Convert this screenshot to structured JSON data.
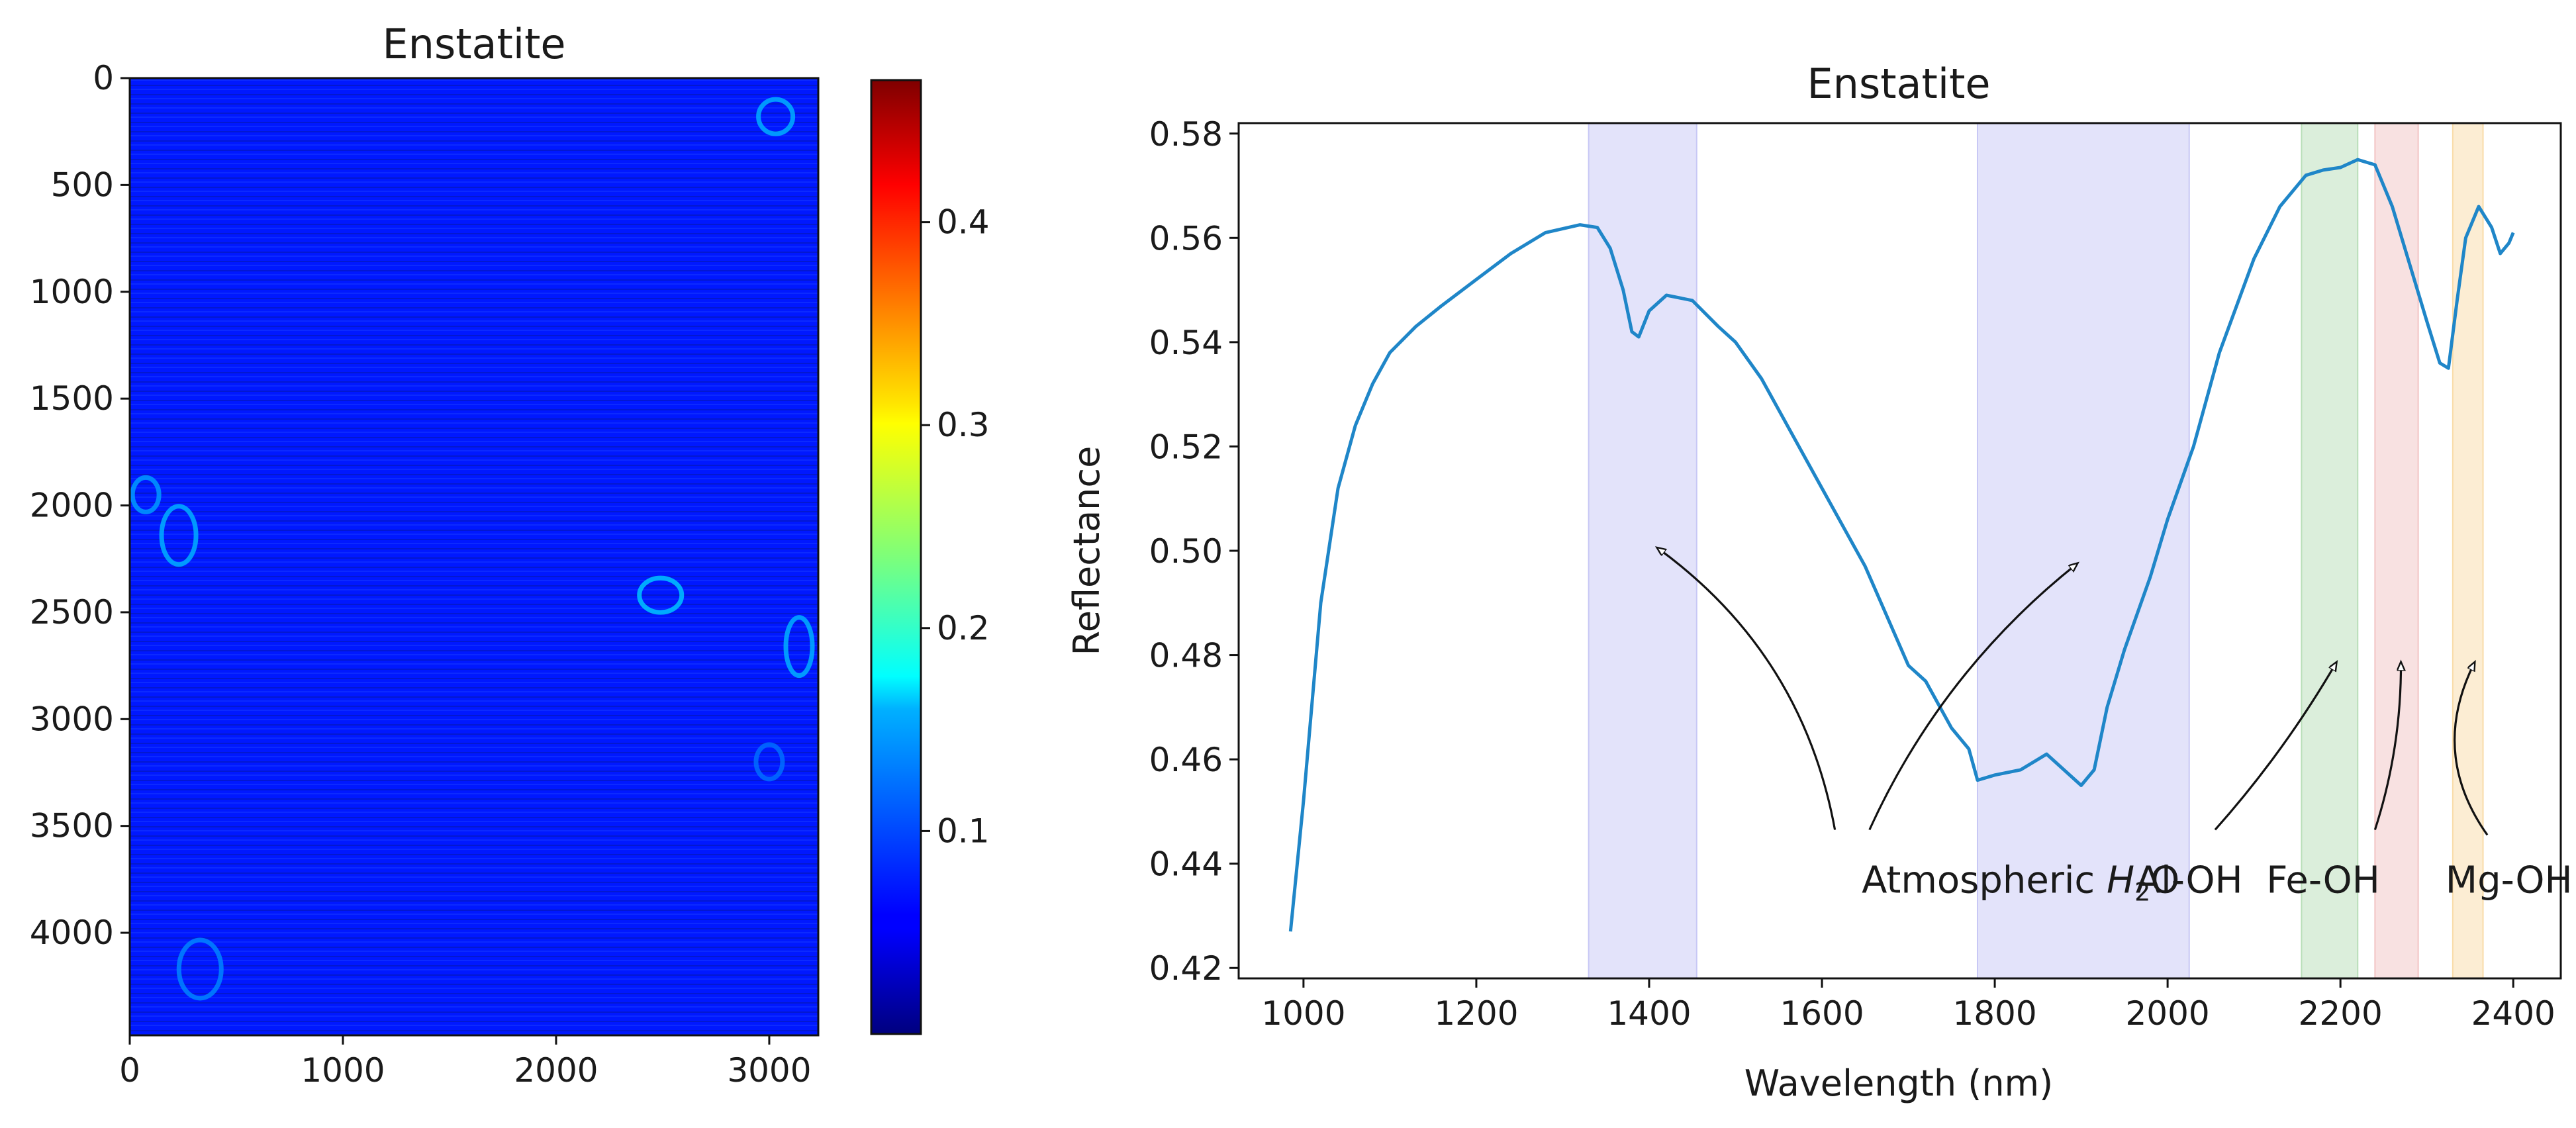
{
  "chart_data": [
    {
      "type": "heatmap",
      "title": "Enstatite",
      "xlim": [
        0,
        3230
      ],
      "ylim": [
        4480,
        0
      ],
      "x_ticks": [
        "0",
        "1000",
        "2000",
        "3000"
      ],
      "y_ticks": [
        "0",
        "500",
        "1000",
        "1500",
        "2000",
        "2500",
        "3000",
        "3500",
        "4000"
      ],
      "colormap": "jet",
      "colorbar": {
        "range": [
          0.0,
          0.47
        ],
        "ticks": [
          "0.1",
          "0.2",
          "0.3",
          "0.4"
        ]
      },
      "background_value": 0.07,
      "features": [
        {
          "x": 75,
          "y": 1950,
          "value": 0.13
        },
        {
          "x": 230,
          "y": 2140,
          "value": 0.14
        },
        {
          "x": 2490,
          "y": 2420,
          "value": 0.15
        },
        {
          "x": 3140,
          "y": 2660,
          "value": 0.14
        },
        {
          "x": 3030,
          "y": 180,
          "value": 0.14
        },
        {
          "x": 330,
          "y": 4170,
          "value": 0.12
        },
        {
          "x": 3000,
          "y": 3200,
          "value": 0.11
        }
      ]
    },
    {
      "type": "line",
      "title": "Enstatite",
      "xlabel": "Wavelength (nm)",
      "ylabel": "Reflectance",
      "xlim": [
        925,
        2455
      ],
      "ylim": [
        0.418,
        0.582
      ],
      "x_ticks": [
        "1000",
        "1200",
        "1400",
        "1600",
        "1800",
        "2000",
        "2200",
        "2400"
      ],
      "y_ticks": [
        "0.42",
        "0.44",
        "0.46",
        "0.48",
        "0.50",
        "0.52",
        "0.54",
        "0.56",
        "0.58"
      ],
      "line_color": "#1f86c8",
      "series": [
        {
          "name": "Enstatite",
          "x": [
            985,
            1000,
            1020,
            1040,
            1060,
            1080,
            1100,
            1130,
            1160,
            1200,
            1240,
            1280,
            1320,
            1340,
            1355,
            1370,
            1380,
            1388,
            1400,
            1420,
            1450,
            1480,
            1500,
            1530,
            1560,
            1600,
            1650,
            1700,
            1720,
            1750,
            1770,
            1780,
            1800,
            1830,
            1860,
            1880,
            1900,
            1915,
            1930,
            1950,
            1980,
            2000,
            2030,
            2060,
            2100,
            2130,
            2160,
            2180,
            2200,
            2220,
            2240,
            2260,
            2280,
            2300,
            2315,
            2325,
            2335,
            2345,
            2360,
            2375,
            2385,
            2395,
            2400
          ],
          "y": [
            0.427,
            0.452,
            0.49,
            0.512,
            0.524,
            0.532,
            0.538,
            0.543,
            0.547,
            0.552,
            0.557,
            0.561,
            0.5625,
            0.562,
            0.558,
            0.55,
            0.542,
            0.541,
            0.546,
            0.549,
            0.548,
            0.543,
            0.54,
            0.533,
            0.524,
            0.512,
            0.497,
            0.478,
            0.475,
            0.466,
            0.462,
            0.456,
            0.457,
            0.458,
            0.461,
            0.458,
            0.455,
            0.458,
            0.47,
            0.481,
            0.495,
            0.506,
            0.52,
            0.538,
            0.556,
            0.566,
            0.572,
            0.573,
            0.5735,
            0.575,
            0.574,
            0.566,
            0.555,
            0.544,
            0.536,
            0.535,
            0.548,
            0.56,
            0.566,
            0.562,
            0.557,
            0.559,
            0.561
          ]
        }
      ],
      "bands": [
        {
          "x0": 1330,
          "x1": 1455,
          "color": "#c8c8f5",
          "alpha": 0.5
        },
        {
          "x0": 1780,
          "x1": 2025,
          "color": "#c8c8f5",
          "alpha": 0.5
        },
        {
          "x0": 2155,
          "x1": 2220,
          "color": "#b8deb8",
          "alpha": 0.5
        },
        {
          "x0": 2240,
          "x1": 2290,
          "color": "#f2c4c4",
          "alpha": 0.5
        },
        {
          "x0": 2330,
          "x1": 2365,
          "color": "#f9dca8",
          "alpha": 0.5
        }
      ],
      "annotations": [
        {
          "id": "atm",
          "text_prefix": "Atmospheric ",
          "text_main": "H",
          "text_sub": "2",
          "text_suffix": "O",
          "x": 1830,
          "y": 0.437
        },
        {
          "id": "aloh",
          "text": "Al-OH",
          "x": 2025,
          "y": 0.437
        },
        {
          "id": "feoh",
          "text": "Fe-OH",
          "x": 2180,
          "y": 0.437
        },
        {
          "id": "mgoh",
          "text": "Mg-OH",
          "x": 2395,
          "y": 0.437
        }
      ],
      "arrows": [
        {
          "from": [
            1615,
            0.4465
          ],
          "to": [
            1410,
            0.5005
          ],
          "bend": 0.2
        },
        {
          "from": [
            1655,
            0.4465
          ],
          "to": [
            1895,
            0.4975
          ],
          "bend": -0.12
        },
        {
          "from": [
            2055,
            0.4465
          ],
          "to": [
            2195,
            0.4785
          ],
          "bend": 0.05
        },
        {
          "from": [
            2240,
            0.4465
          ],
          "to": [
            2270,
            0.4785
          ],
          "bend": 0.08
        },
        {
          "from": [
            2370,
            0.4455
          ],
          "to": [
            2355,
            0.4785
          ],
          "bend": -0.3
        }
      ]
    }
  ]
}
